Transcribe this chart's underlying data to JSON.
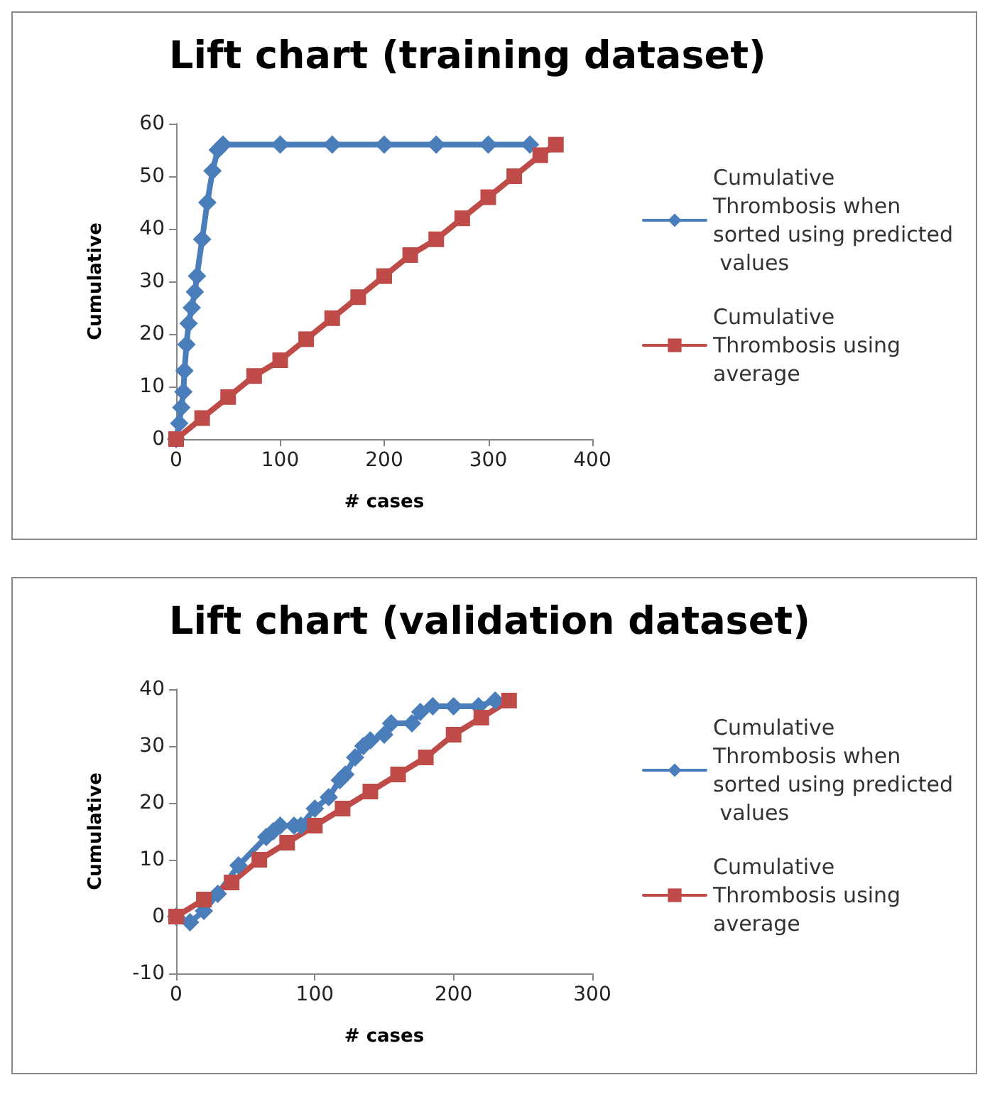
{
  "chart_data": [
    {
      "type": "line",
      "title": "Lift chart (training dataset)",
      "xlabel": "# cases",
      "ylabel": "Cumulative",
      "xlim": [
        0,
        400
      ],
      "xticks": [
        0,
        100,
        200,
        300,
        400
      ],
      "ylim": [
        0,
        60
      ],
      "yticks": [
        0,
        10,
        20,
        30,
        40,
        50,
        60
      ],
      "legend": "right",
      "grid": false,
      "series": [
        {
          "name": "Cumulative Thrombosis when sorted using predicted values",
          "color": "#4a7ebb",
          "marker": "diamond",
          "x": [
            0,
            3,
            5,
            7,
            8,
            10,
            12,
            15,
            18,
            20,
            25,
            30,
            35,
            40,
            45,
            100,
            150,
            200,
            250,
            300,
            340
          ],
          "values": [
            0,
            3,
            6,
            9,
            13,
            18,
            22,
            25,
            28,
            31,
            38,
            45,
            51,
            55,
            56,
            56,
            56,
            56,
            56,
            56,
            56
          ]
        },
        {
          "name": "Cumulative Thrombosis using average",
          "color": "#be4b48",
          "marker": "square",
          "x": [
            0,
            25,
            50,
            75,
            100,
            125,
            150,
            175,
            200,
            225,
            250,
            275,
            300,
            325,
            350,
            365
          ],
          "values": [
            0,
            4,
            8,
            12,
            15,
            19,
            23,
            27,
            31,
            35,
            38,
            42,
            46,
            50,
            54,
            56
          ]
        }
      ]
    },
    {
      "type": "line",
      "title": "Lift chart (validation dataset)",
      "xlabel": "# cases",
      "ylabel": "Cumulative",
      "xlim": [
        0,
        300
      ],
      "xticks": [
        0,
        100,
        200,
        300
      ],
      "ylim": [
        -10,
        40
      ],
      "yticks": [
        -10,
        0,
        10,
        20,
        30,
        40
      ],
      "legend": "right",
      "grid": false,
      "series": [
        {
          "name": "Cumulative Thrombosis when sorted using predicted values",
          "color": "#4a7ebb",
          "marker": "diamond",
          "x": [
            0,
            10,
            20,
            30,
            45,
            65,
            70,
            75,
            85,
            90,
            100,
            110,
            118,
            122,
            129,
            135,
            140,
            150,
            155,
            170,
            176,
            185,
            200,
            218,
            230
          ],
          "values": [
            0,
            -1,
            1,
            4,
            9,
            14,
            15,
            16,
            16,
            16,
            19,
            21,
            24,
            25,
            28,
            30,
            31,
            32,
            34,
            34,
            36,
            37,
            37,
            37,
            38
          ]
        },
        {
          "name": "Cumulative Thrombosis using average",
          "color": "#be4b48",
          "marker": "square",
          "x": [
            0,
            20,
            40,
            60,
            80,
            100,
            120,
            140,
            160,
            180,
            200,
            220,
            240
          ],
          "values": [
            0,
            3,
            6,
            10,
            13,
            16,
            19,
            22,
            25,
            28,
            32,
            35,
            38
          ]
        }
      ]
    }
  ]
}
